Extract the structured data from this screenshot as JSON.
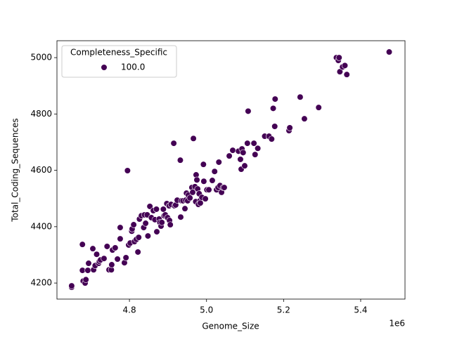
{
  "chart_data": {
    "type": "scatter",
    "xlabel": "Genome_Size",
    "ylabel": "Total_Coding_Sequences",
    "x_offset_text": "1e6",
    "legend_title": "Completeness_Specific",
    "legend": "upper left",
    "xlim": [
      4611900,
      5515000
    ],
    "ylim": [
      4143,
      5060
    ],
    "xticks": [
      {
        "value": 4800000,
        "label": "4.8"
      },
      {
        "value": 5000000,
        "label": "5.0"
      },
      {
        "value": 5200000,
        "label": "5.2"
      },
      {
        "value": 5400000,
        "label": "5.4"
      }
    ],
    "yticks": [
      4200,
      4400,
      4600,
      4800,
      5000
    ],
    "x": [
      4650000,
      4650000,
      4678000,
      4678000,
      4680000,
      4685000,
      4687000,
      4692000,
      4694000,
      4705000,
      4707000,
      4711000,
      4715000,
      4720000,
      4722000,
      4725000,
      4734000,
      4742000,
      4747000,
      4753000,
      4754000,
      4756000,
      4763000,
      4769000,
      4776000,
      4776000,
      4787000,
      4791000,
      4795000,
      4798000,
      4802000,
      4806000,
      4807000,
      4811000,
      4813000,
      4818000,
      4822000,
      4824000,
      4826000,
      4831000,
      4837000,
      4839000,
      4842000,
      4846000,
      4848000,
      4853000,
      4857000,
      4862000,
      4866000,
      4870000,
      4871000,
      4877000,
      4879000,
      4882000,
      4884000,
      4888000,
      4890000,
      4893000,
      4897000,
      4899000,
      4903000,
      4904000,
      4906000,
      4908000,
      4915000,
      4917000,
      4920000,
      4924000,
      4932000,
      4933000,
      4935000,
      4939000,
      4944000,
      4946000,
      4948000,
      4951000,
      4953000,
      4957000,
      4962000,
      4964000,
      4966000,
      4970000,
      4972000,
      4973000,
      4975000,
      4977000,
      4979000,
      4981000,
      4983000,
      4984000,
      4988000,
      4992000,
      4993000,
      4997000,
      5001000,
      5006000,
      5015000,
      5021000,
      5026000,
      5030000,
      5032000,
      5035000,
      5039000,
      5043000,
      5046000,
      5059000,
      5068000,
      5083000,
      5088000,
      5090000,
      5092000,
      5095000,
      5099000,
      5106000,
      5108000,
      5123000,
      5126000,
      5133000,
      5151000,
      5162000,
      5169000,
      5173000,
      5177000,
      5178000,
      5214000,
      5216000,
      5243000,
      5254000,
      5291000,
      5337000,
      5342000,
      5344000,
      5346000,
      5353000,
      5359000,
      5364000,
      5474000
    ],
    "series": [
      {
        "name": "100.0",
        "color": "#440154",
        "values": [
          4185,
          4190,
          4245,
          4337,
          4207,
          4200,
          4212,
          4245,
          4270,
          4322,
          4247,
          4262,
          4302,
          4270,
          4277,
          4282,
          4287,
          4330,
          4247,
          4247,
          4265,
          4317,
          4325,
          4285,
          4357,
          4397,
          4272,
          4290,
          4599,
          4335,
          4342,
          4384,
          4392,
          4407,
          4347,
          4355,
          4310,
          4362,
          4427,
          4439,
          4397,
          4442,
          4412,
          4442,
          4367,
          4472,
          4432,
          4457,
          4425,
          4462,
          4382,
          4427,
          4415,
          4402,
          4415,
          4462,
          4439,
          4442,
          4482,
          4432,
          4474,
          4422,
          4407,
          4479,
          4696,
          4474,
          4477,
          4494,
          4636,
          4434,
          4492,
          4492,
          4464,
          4494,
          4519,
          4492,
          4512,
          4502,
          4539,
          4522,
          4713,
          4542,
          4489,
          4584,
          4566,
          4534,
          4479,
          4517,
          4492,
          4484,
          4504,
          4621,
          4561,
          4499,
          4531,
          4531,
          4564,
          4596,
          4531,
          4539,
          4629,
          4546,
          4522,
          4539,
          4539,
          4651,
          4671,
          4668,
          4639,
          4604,
          4676,
          4663,
          4616,
          4696,
          4810,
          4696,
          4656,
          4678,
          4721,
          4721,
          4711,
          4820,
          4756,
          4853,
          4741,
          4751,
          4860,
          4783,
          4823,
          5000,
          4990,
          5000,
          4950,
          4967,
          4972,
          4940,
          5020
        ]
      }
    ]
  }
}
